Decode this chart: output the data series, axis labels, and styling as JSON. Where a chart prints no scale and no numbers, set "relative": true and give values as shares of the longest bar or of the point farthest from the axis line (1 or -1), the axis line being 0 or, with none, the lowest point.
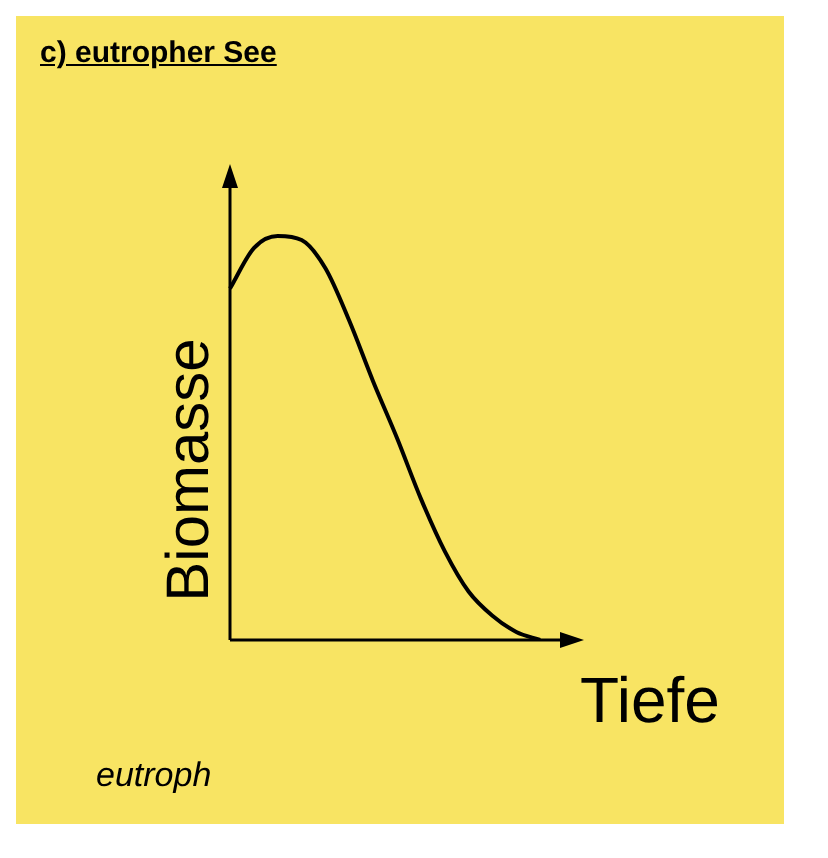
{
  "chart_data": {
    "type": "line",
    "title": "c) eutropher See",
    "xlabel": "Tiefe",
    "ylabel": "Biomasse",
    "annotations": [
      "eutroph"
    ],
    "relative": true,
    "categories": [
      null,
      null,
      null,
      null,
      null,
      null,
      null,
      null,
      null,
      null,
      null,
      null,
      null,
      null,
      null
    ],
    "series": [
      {
        "color": "#000000",
        "values": [
          0.87,
          0.97,
          1.0,
          0.99,
          0.92,
          0.79,
          0.64,
          0.5,
          0.35,
          0.22,
          0.12,
          0.06,
          0.02,
          0,
          null
        ]
      }
    ],
    "legend": false,
    "marker": "none",
    "line_style": "solid"
  }
}
